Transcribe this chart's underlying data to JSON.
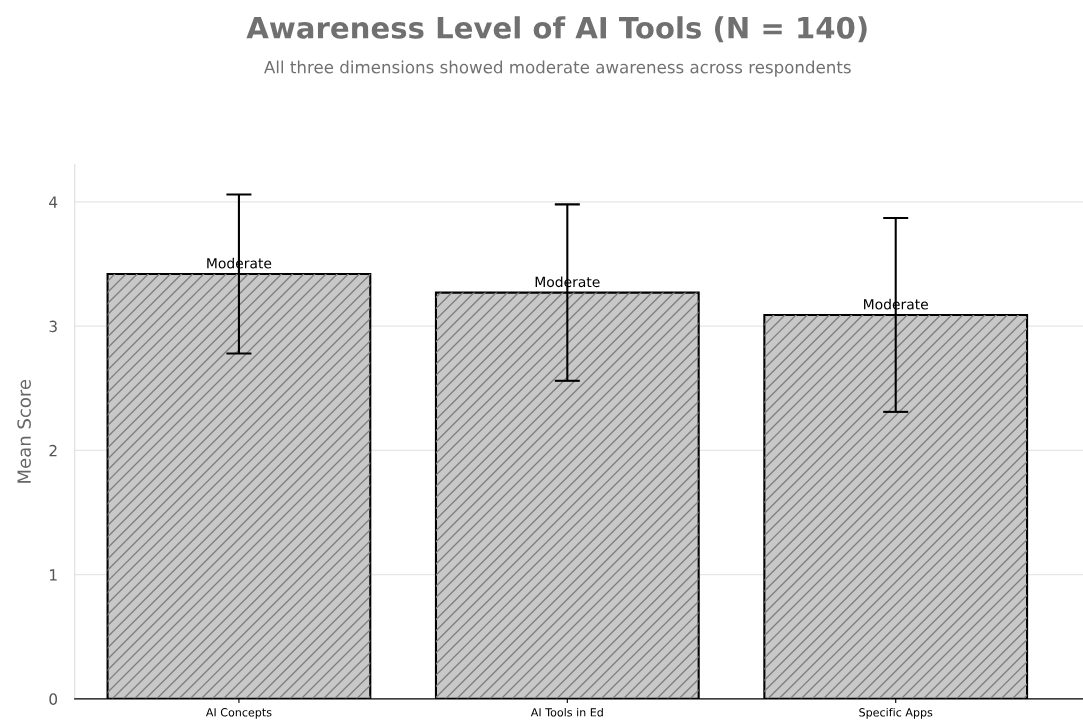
{
  "chart_data": {
    "type": "bar",
    "title": "Awareness Level of AI Tools (N = 140)",
    "subtitle": "All three dimensions showed moderate awareness across respondents",
    "ylabel": "Mean Score",
    "categories": [
      "AI Concepts",
      "AI Tools in Ed",
      "Specific Apps"
    ],
    "values": [
      3.42,
      3.27,
      3.09
    ],
    "errors": [
      0.64,
      0.71,
      0.78
    ],
    "value_labels": [
      "Moderate",
      "Moderate",
      "Moderate"
    ],
    "color": "#c8c8c8",
    "ylim": [
      0,
      4.3
    ],
    "yticks": [
      0,
      1,
      2,
      3,
      4
    ],
    "grid": "y",
    "legend": false
  }
}
